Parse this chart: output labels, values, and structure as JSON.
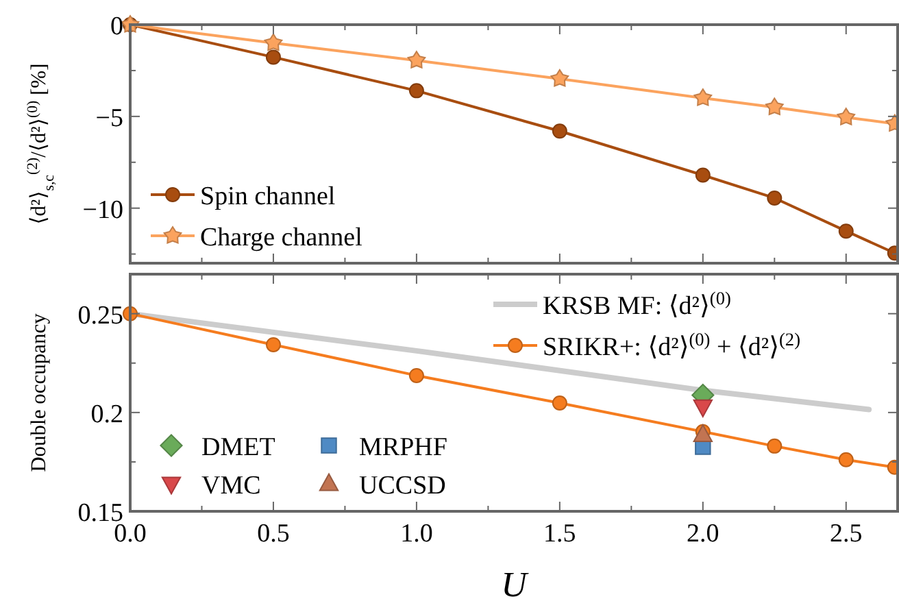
{
  "chart_data": [
    {
      "type": "line",
      "ylabel": "⟨d²⟩$_{s,c}$$^{(2)}$/⟨d²⟩$^{(0)}$ [%]",
      "xlim": [
        0,
        2.68
      ],
      "ylim": [
        -13,
        0
      ],
      "xticks": [
        0,
        {
          "value": 0.25,
          "label": null
        },
        0.5,
        {
          "value": 0.75,
          "label": null
        },
        1,
        {
          "value": 1.25,
          "label": null
        },
        1.5,
        {
          "value": 1.75,
          "label": null
        },
        2,
        {
          "value": 2.25,
          "label": null
        },
        2.5
      ],
      "yticks": [
        0,
        {
          "value": -2.5,
          "label": null
        },
        {
          "value": -5,
          "label": "−5"
        },
        {
          "value": -7.5,
          "label": null
        },
        {
          "value": -10,
          "label": "−10"
        },
        {
          "value": -12.5,
          "label": null
        }
      ],
      "tick_labels": "y",
      "legend": "bottom left",
      "x": [
        0,
        0.5,
        1,
        1.5,
        2,
        2.25,
        2.5,
        2.67
      ],
      "series": [
        {
          "name": "Spin channel",
          "color": "#a84d10",
          "marker": "circle",
          "values": [
            0,
            -1.77,
            -3.6,
            -5.8,
            -8.2,
            -9.45,
            -11.25,
            -12.45
          ]
        },
        {
          "name": "Charge channel",
          "color": "#fba35e",
          "marker": "star",
          "values": [
            0,
            -1.0,
            -1.95,
            -2.95,
            -4.0,
            -4.5,
            -5.05,
            -5.4
          ]
        }
      ]
    },
    {
      "type": "line",
      "xlabel": "U",
      "ylabel": "Double occupancy",
      "xlim": [
        0,
        2.68
      ],
      "ylim": [
        0.15,
        0.27
      ],
      "xticks": [
        {
          "value": 0,
          "label": "0.0"
        },
        {
          "value": 0.25,
          "label": null
        },
        0.5,
        {
          "value": 0.75,
          "label": null
        },
        {
          "value": 1,
          "label": "1.0"
        },
        {
          "value": 1.25,
          "label": null
        },
        1.5,
        {
          "value": 1.75,
          "label": null
        },
        {
          "value": 2,
          "label": "2.0"
        },
        {
          "value": 2.25,
          "label": null
        },
        2.5
      ],
      "yticks": [
        {
          "value": 0.15,
          "label": "0.15"
        },
        {
          "value": 0.175,
          "label": null
        },
        {
          "value": 0.2,
          "label": "0.2"
        },
        {
          "value": 0.225,
          "label": null
        },
        0.25
      ],
      "legend": "top right",
      "x": [
        0,
        0.5,
        1,
        1.5,
        2,
        2.25,
        2.5,
        2.67
      ],
      "series": [
        {
          "name": "KRSB MF: ⟨d²⟩$^{(0)}$",
          "color": "#cccccc",
          "marker": "none",
          "x": [
            0,
            1,
            2,
            2.58
          ],
          "values": [
            0.25,
            0.2312,
            0.2112,
            0.2015
          ]
        },
        {
          "name": "SRIKR+: ⟨d²⟩$^{(0)}$ + ⟨d²⟩$^{(2)}$",
          "color": "#f57c1f",
          "marker": "circle",
          "values": [
            0.25,
            0.2343,
            0.2187,
            0.2048,
            0.1903,
            0.183,
            0.1761,
            0.1723
          ]
        },
        {
          "name": "DMET",
          "type": "scatter",
          "color": "#6aab5a",
          "marker": "diamond",
          "x": [
            2
          ],
          "values": [
            0.2088
          ]
        },
        {
          "name": "VMC",
          "type": "scatter",
          "color": "#d9484a",
          "marker": "triangle-down",
          "x": [
            2
          ],
          "values": [
            0.2029
          ]
        },
        {
          "name": "MRPHF",
          "type": "scatter",
          "color": "#4f8ac4",
          "marker": "square",
          "x": [
            2
          ],
          "values": [
            0.1826
          ]
        },
        {
          "name": "UCCSD",
          "type": "scatter",
          "color": "#c27452",
          "marker": "triangle",
          "x": [
            2
          ],
          "values": [
            0.1887
          ]
        }
      ]
    }
  ]
}
